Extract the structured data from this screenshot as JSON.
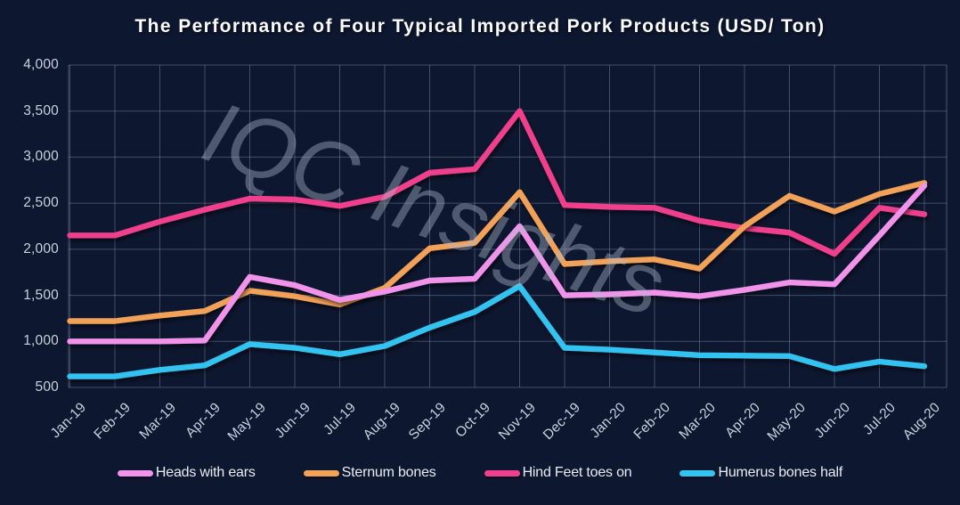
{
  "title": "The Performance of Four Typical Imported Pork Products (USD/ Ton)",
  "watermark": "IQC Insights",
  "colors": {
    "background_top": "#314d78",
    "background_bottom": "#151f3c",
    "gridline": "rgba(163,178,202,0.35)",
    "axis_text": "#c9d1de",
    "title_text": "#fbfcfe",
    "legend_text": "#e9edf3",
    "watermark_text": "rgba(178,190,207,0.40)"
  },
  "y_axis": {
    "tick_values": [
      4000,
      3500,
      3000,
      2500,
      2000,
      1500,
      1000,
      500
    ],
    "tick_labels": [
      "4,000",
      "3,500",
      "3,000",
      "2,500",
      "2,000",
      "1,500",
      "1,000",
      "500"
    ]
  },
  "chart_data": {
    "type": "line",
    "title": "The Performance of Four Typical Imported Pork Products (USD/ Ton)",
    "xlabel": "",
    "ylabel": "",
    "ylim": [
      500,
      4000
    ],
    "grid": true,
    "legend_position": "bottom",
    "categories": [
      "Jan-19",
      "Feb-19",
      "Mar-19",
      "Apr-19",
      "May-19",
      "Jun-19",
      "Jul-19",
      "Aug-19",
      "Sep-19",
      "Oct-19",
      "Nov-19",
      "Dec-19",
      "Jan-20",
      "Feb-20",
      "Mar-20",
      "Apr-20",
      "May-20",
      "Jun-20",
      "Jul-20",
      "Aug-20"
    ],
    "series": [
      {
        "name": "Heads with ears",
        "color": "#f193eb",
        "values": [
          1000,
          1000,
          1000,
          1010,
          1700,
          1610,
          1450,
          1540,
          1660,
          1680,
          2250,
          1500,
          1510,
          1530,
          1490,
          1560,
          1640,
          1620,
          2150,
          2690
        ]
      },
      {
        "name": "Sternum bones",
        "color": "#f1a158",
        "values": [
          1220,
          1220,
          1280,
          1330,
          1550,
          1490,
          1400,
          1580,
          2010,
          2070,
          2620,
          1840,
          1870,
          1890,
          1790,
          2250,
          2580,
          2410,
          2600,
          2720
        ]
      },
      {
        "name": "Hind Feet toes on",
        "color": "#f0408d",
        "values": [
          2150,
          2150,
          2300,
          2430,
          2550,
          2540,
          2470,
          2570,
          2830,
          2870,
          3500,
          2480,
          2460,
          2450,
          2310,
          2230,
          2180,
          1950,
          2450,
          2380
        ]
      },
      {
        "name": "Humerus bones half",
        "color": "#33c3f0",
        "values": [
          620,
          620,
          690,
          740,
          970,
          930,
          860,
          950,
          1150,
          1320,
          1600,
          930,
          910,
          880,
          850,
          845,
          840,
          700,
          780,
          730
        ]
      }
    ]
  }
}
